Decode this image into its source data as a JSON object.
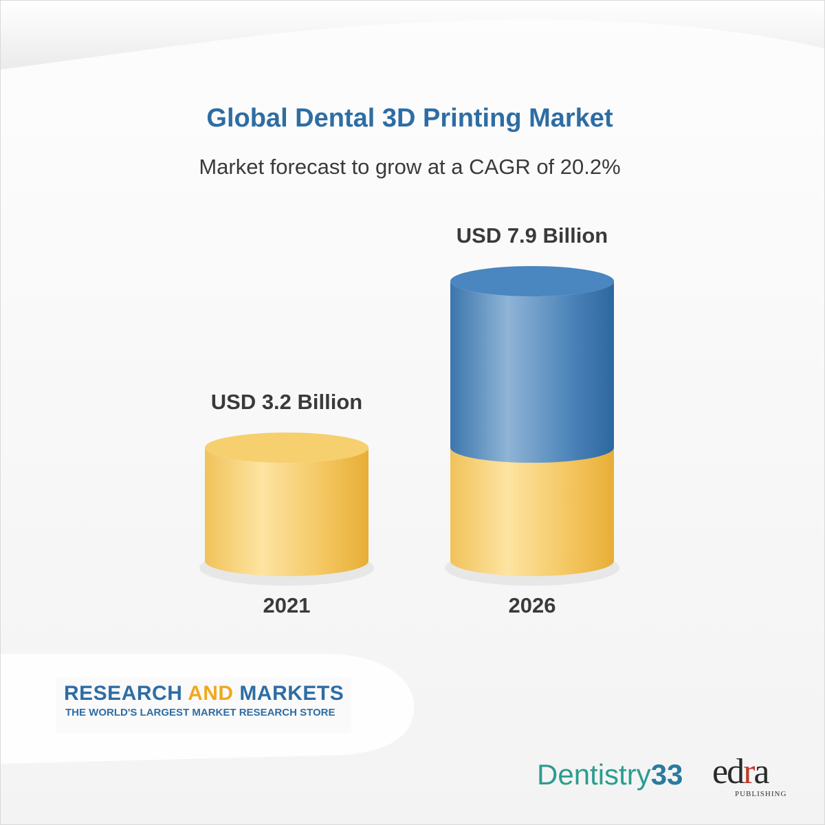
{
  "chart_data": {
    "type": "bar",
    "title": "Global Dental 3D Printing Market",
    "subtitle": "Market forecast to grow at a CAGR of 20.2%",
    "categories": [
      "2021",
      "2026"
    ],
    "values": [
      3.2,
      7.9
    ],
    "value_labels": [
      "USD 3.2 Billion",
      "USD 7.9 Billion"
    ],
    "ylim": [
      0,
      7.9
    ],
    "grid": false,
    "colors": {
      "base": "#f2c154",
      "growth": "#3f7fb3"
    }
  },
  "logos": {
    "research": {
      "line1a": "RESEARCH ",
      "line1b": "AND",
      "line1c": " MARKETS",
      "line2": "THE WORLD'S LARGEST MARKET RESEARCH STORE"
    },
    "dentistry": {
      "word": "Dentistry",
      "num": "33"
    },
    "edra": {
      "e": "e",
      "d": "d",
      "r": "r",
      "a": "a",
      "sub": "PUBLISHING"
    }
  }
}
